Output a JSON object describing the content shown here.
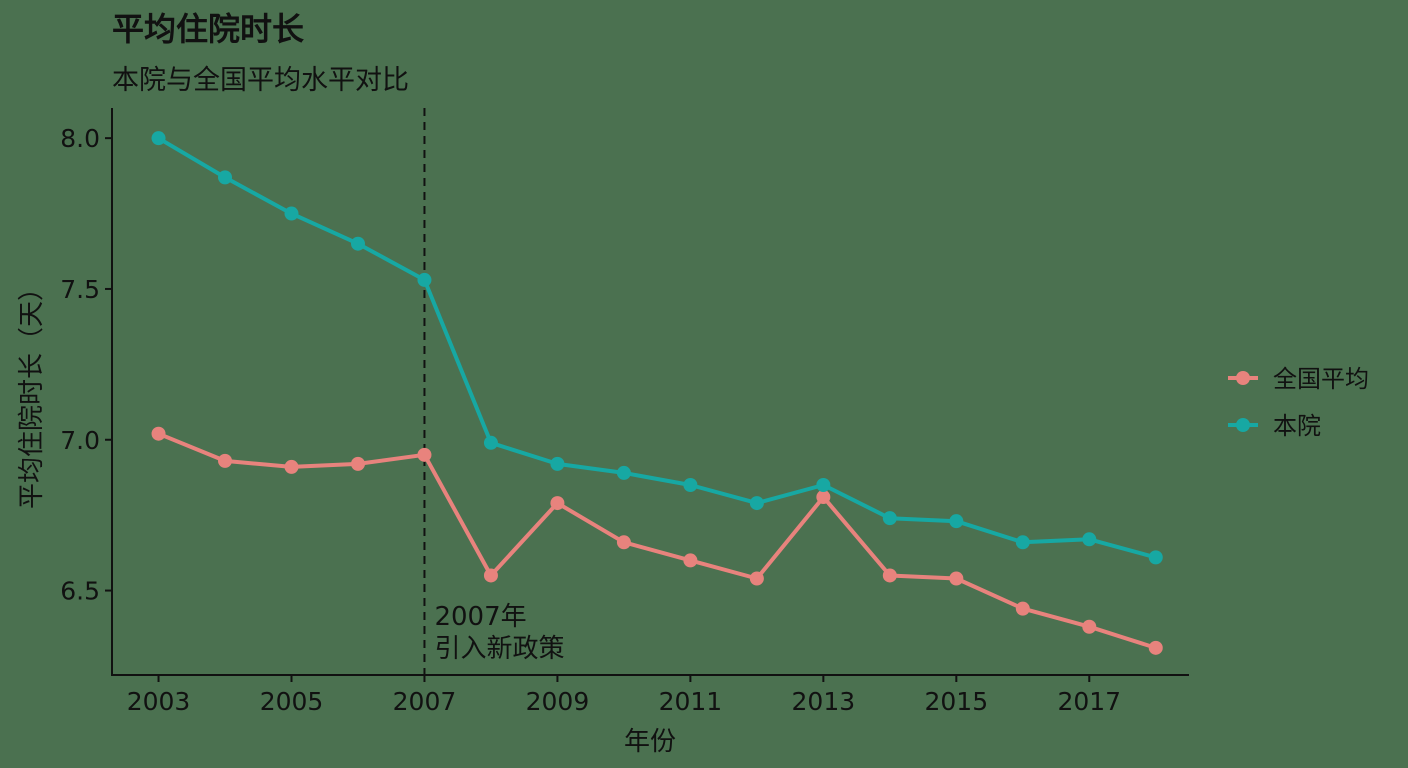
{
  "chart_data": {
    "type": "line",
    "title": "平均住院时长",
    "subtitle": "本院与全国平均水平对比",
    "xlabel": "年份",
    "ylabel": "平均住院时长（天）",
    "x": [
      2003,
      2004,
      2005,
      2006,
      2007,
      2008,
      2009,
      2010,
      2011,
      2012,
      2013,
      2014,
      2015,
      2016,
      2017,
      2018
    ],
    "x_ticks": [
      "2003",
      "2005",
      "2007",
      "2009",
      "2011",
      "2013",
      "2015",
      "2017"
    ],
    "y_ticks": [
      "6.5",
      "7.0",
      "7.5",
      "8.0"
    ],
    "xlim": [
      2002.3,
      2018.5
    ],
    "ylim": [
      6.22,
      8.1
    ],
    "grid": false,
    "legend_position": "right",
    "series": [
      {
        "name": "全国平均",
        "color": "#e8837d",
        "values": [
          7.02,
          6.93,
          6.91,
          6.92,
          6.95,
          6.55,
          6.79,
          6.66,
          6.6,
          6.54,
          6.81,
          6.55,
          6.54,
          6.44,
          6.38,
          6.31
        ]
      },
      {
        "name": "本院",
        "color": "#17a8a3",
        "values": [
          8.0,
          7.87,
          7.75,
          7.65,
          7.53,
          6.99,
          6.92,
          6.89,
          6.85,
          6.79,
          6.85,
          6.74,
          6.73,
          6.66,
          6.67,
          6.61
        ]
      }
    ],
    "annotation": {
      "x": 2007,
      "line_style": "dashed",
      "lines": [
        "2007年",
        "引入新政策"
      ]
    }
  }
}
